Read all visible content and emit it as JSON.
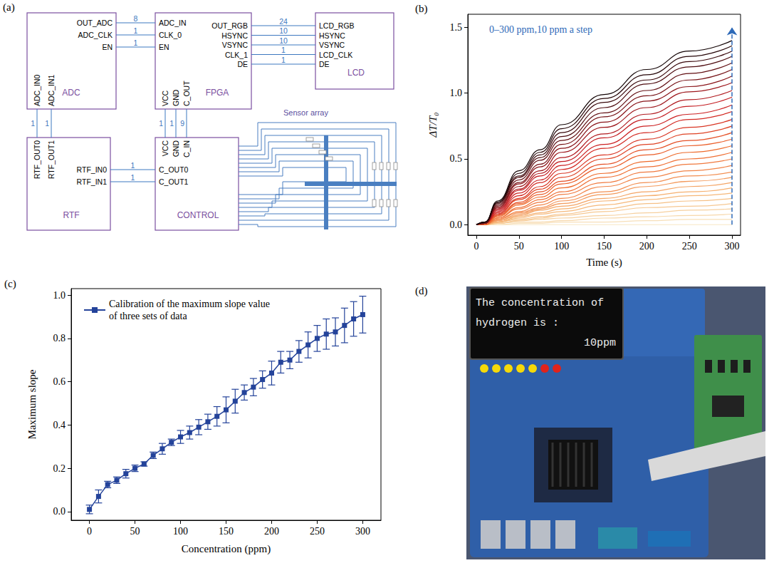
{
  "diagram": {
    "panel": "(a)",
    "blocks": [
      {
        "title": "ADC",
        "right": [
          "OUT_ADC",
          "ADC_CLK",
          "EN"
        ],
        "bottom": [
          "ADC_IN0",
          "ADC_IN1"
        ]
      },
      {
        "title": "FPGA",
        "left": [
          "ADC_IN",
          "CLK_0",
          "EN"
        ],
        "right": [
          "OUT_RGB",
          "HSYNC",
          "VSYNC",
          "CLK_1",
          "DE"
        ],
        "bottom": [
          "VCC",
          "GND",
          "C_OUT"
        ]
      },
      {
        "title": "LCD",
        "left": [
          "LCD_RGB",
          "HSYNC",
          "VSYNC",
          "LCD_CLK",
          "DE"
        ]
      },
      {
        "title": "RTF",
        "top": [
          "RTF_OUT0",
          "RTF_OUT1"
        ],
        "right": [
          "RTF_IN0",
          "RTF_IN1"
        ]
      },
      {
        "title": "CONTROL",
        "top": [
          "VCC",
          "GND",
          "C_IN"
        ],
        "left": [
          "C_OUT0",
          "C_OUT1"
        ]
      }
    ],
    "buses": [
      [
        8,
        1,
        1
      ],
      [
        24,
        10,
        10,
        1,
        1
      ],
      [
        1,
        1
      ],
      [
        1,
        1,
        9
      ],
      [
        1,
        1
      ]
    ],
    "sensor_array": "Sensor array"
  },
  "chart_data": [
    {
      "type": "line",
      "panel": "(b)",
      "annotation": "0–300 ppm,10 ppm a step",
      "x_label": "Time (s)",
      "y_label": "ΔT/T₀",
      "x": [
        0,
        10,
        25,
        50,
        75,
        100,
        150,
        200,
        250,
        300
      ],
      "series": [
        {
          "color": "#f8e6c4",
          "values": [
            0,
            0,
            0,
            0,
            0,
            0,
            0,
            0,
            0,
            0
          ]
        },
        {
          "color": "#f7dfb8",
          "values": [
            0,
            0,
            0,
            0.01,
            0.01,
            0.02,
            0.02,
            0.03,
            0.04,
            0.04
          ]
        },
        {
          "color": "#f7d8ab",
          "values": [
            0,
            0,
            0.01,
            0.02,
            0.02,
            0.03,
            0.05,
            0.06,
            0.07,
            0.08
          ]
        },
        {
          "color": "#f6d09f",
          "values": [
            0,
            0,
            0.01,
            0.03,
            0.04,
            0.05,
            0.07,
            0.09,
            0.11,
            0.12
          ]
        },
        {
          "color": "#f6c892",
          "values": [
            0,
            0,
            0.01,
            0.03,
            0.05,
            0.07,
            0.1,
            0.13,
            0.14,
            0.16
          ]
        },
        {
          "color": "#f5c086",
          "values": [
            0,
            0,
            0.02,
            0.04,
            0.06,
            0.08,
            0.12,
            0.16,
            0.18,
            0.2
          ]
        },
        {
          "color": "#f5b87a",
          "values": [
            0,
            0,
            0.02,
            0.05,
            0.08,
            0.1,
            0.15,
            0.19,
            0.22,
            0.24
          ]
        },
        {
          "color": "#f5b070",
          "values": [
            0,
            0,
            0.02,
            0.06,
            0.09,
            0.12,
            0.18,
            0.22,
            0.25,
            0.28
          ]
        },
        {
          "color": "#f4a566",
          "values": [
            0,
            0,
            0.03,
            0.07,
            0.11,
            0.14,
            0.2,
            0.25,
            0.29,
            0.32
          ]
        },
        {
          "color": "#f39a5c",
          "values": [
            0,
            0,
            0.03,
            0.08,
            0.12,
            0.16,
            0.23,
            0.29,
            0.33,
            0.36
          ]
        },
        {
          "color": "#f28f52",
          "values": [
            0,
            0,
            0.04,
            0.09,
            0.13,
            0.18,
            0.25,
            0.32,
            0.37,
            0.4
          ]
        },
        {
          "color": "#f18448",
          "values": [
            0,
            0,
            0.04,
            0.1,
            0.15,
            0.2,
            0.29,
            0.36,
            0.41,
            0.45
          ]
        },
        {
          "color": "#f0793e",
          "values": [
            0,
            0,
            0.05,
            0.12,
            0.17,
            0.23,
            0.32,
            0.4,
            0.46,
            0.5
          ]
        },
        {
          "color": "#ef6f34",
          "values": [
            0,
            0,
            0.05,
            0.13,
            0.19,
            0.25,
            0.36,
            0.44,
            0.5,
            0.55
          ]
        },
        {
          "color": "#ee6a2a",
          "values": [
            0,
            0,
            0.06,
            0.15,
            0.21,
            0.28,
            0.39,
            0.48,
            0.55,
            0.6
          ]
        },
        {
          "color": "#ea5d28",
          "values": [
            0,
            0,
            0.07,
            0.16,
            0.23,
            0.31,
            0.43,
            0.53,
            0.6,
            0.65
          ]
        },
        {
          "color": "#e55026",
          "values": [
            0,
            0.01,
            0.07,
            0.17,
            0.25,
            0.33,
            0.46,
            0.57,
            0.64,
            0.7
          ]
        },
        {
          "color": "#df4325",
          "values": [
            0,
            0.01,
            0.08,
            0.19,
            0.27,
            0.36,
            0.5,
            0.61,
            0.69,
            0.75
          ]
        },
        {
          "color": "#d93624",
          "values": [
            0,
            0.01,
            0.08,
            0.2,
            0.29,
            0.39,
            0.53,
            0.65,
            0.74,
            0.8
          ]
        },
        {
          "color": "#d32a23",
          "values": [
            0,
            0.01,
            0.09,
            0.22,
            0.32,
            0.42,
            0.58,
            0.7,
            0.8,
            0.86
          ]
        },
        {
          "color": "#cc2223",
          "values": [
            0,
            0.01,
            0.1,
            0.24,
            0.34,
            0.45,
            0.61,
            0.75,
            0.84,
            0.91
          ]
        },
        {
          "color": "#c41e23",
          "values": [
            0,
            0.01,
            0.11,
            0.26,
            0.37,
            0.48,
            0.66,
            0.8,
            0.9,
            0.97
          ]
        },
        {
          "color": "#b11b20",
          "values": [
            0,
            0.01,
            0.12,
            0.27,
            0.39,
            0.51,
            0.69,
            0.84,
            0.95,
            1.02
          ]
        },
        {
          "color": "#9e181d",
          "values": [
            0,
            0.01,
            0.13,
            0.29,
            0.41,
            0.55,
            0.74,
            0.89,
            1.01,
            1.08
          ]
        },
        {
          "color": "#8a151a",
          "values": [
            0,
            0.01,
            0.13,
            0.31,
            0.44,
            0.58,
            0.78,
            0.94,
            1.05,
            1.13
          ]
        },
        {
          "color": "#761216",
          "values": [
            0,
            0.01,
            0.14,
            0.32,
            0.46,
            0.61,
            0.82,
            0.98,
            1.1,
            1.18
          ]
        },
        {
          "color": "#620f13",
          "values": [
            0,
            0.01,
            0.15,
            0.34,
            0.49,
            0.64,
            0.85,
            1.02,
            1.15,
            1.23
          ]
        },
        {
          "color": "#4e0c10",
          "values": [
            0,
            0.02,
            0.16,
            0.36,
            0.51,
            0.67,
            0.89,
            1.07,
            1.2,
            1.28
          ]
        },
        {
          "color": "#3a090c",
          "values": [
            0,
            0.02,
            0.17,
            0.37,
            0.53,
            0.7,
            0.93,
            1.1,
            1.24,
            1.32
          ]
        },
        {
          "color": "#260608",
          "values": [
            0,
            0.02,
            0.17,
            0.39,
            0.55,
            0.73,
            0.96,
            1.14,
            1.28,
            1.36
          ]
        },
        {
          "color": "#120304",
          "values": [
            0,
            0.02,
            0.18,
            0.41,
            0.57,
            0.76,
            0.99,
            1.18,
            1.32,
            1.4
          ]
        }
      ],
      "xlim": [
        -10,
        310
      ],
      "xticks": [
        0,
        50,
        100,
        150,
        200,
        250,
        300
      ],
      "ylim": [
        -0.08,
        1.6
      ],
      "yticks": [
        {
          "value": 0,
          "label": "0.0"
        },
        0.5,
        {
          "value": 1,
          "label": "1.0"
        },
        1.5
      ],
      "grid": false
    },
    {
      "type": "line",
      "panel": "(c)",
      "x_label": "Concentration (ppm)",
      "y_label": "Maximum slope",
      "x": [
        0,
        10,
        20,
        30,
        40,
        50,
        60,
        70,
        80,
        90,
        100,
        110,
        120,
        130,
        140,
        150,
        160,
        170,
        180,
        190,
        200,
        210,
        220,
        230,
        240,
        250,
        260,
        270,
        280,
        290,
        300
      ],
      "series": [
        {
          "name": "Calibration of the maximum slope value of three sets of data",
          "color": "#24439a",
          "marker": "square",
          "values": [
            0.01,
            0.07,
            0.125,
            0.145,
            0.175,
            0.2,
            0.22,
            0.26,
            0.29,
            0.32,
            0.345,
            0.365,
            0.39,
            0.415,
            0.44,
            0.47,
            0.51,
            0.55,
            0.575,
            0.61,
            0.64,
            0.69,
            0.7,
            0.74,
            0.77,
            0.8,
            0.82,
            0.83,
            0.86,
            0.89,
            0.91
          ],
          "errors": [
            0.02,
            0.03,
            0.015,
            0.015,
            0.02,
            0.015,
            0.01,
            0.015,
            0.025,
            0.015,
            0.03,
            0.03,
            0.035,
            0.035,
            0.045,
            0.06,
            0.055,
            0.035,
            0.04,
            0.04,
            0.055,
            0.05,
            0.04,
            0.05,
            0.06,
            0.06,
            0.07,
            0.065,
            0.08,
            0.08,
            0.085
          ]
        }
      ],
      "legend": "upper left",
      "xlim": [
        -20,
        320
      ],
      "xticks": [
        0,
        50,
        100,
        150,
        200,
        250,
        300
      ],
      "ylim": [
        -0.04,
        1.03
      ],
      "yticks": [
        {
          "value": 0,
          "label": "0.0"
        },
        0.2,
        0.4,
        0.6,
        0.8,
        {
          "value": 1,
          "label": "1.0"
        }
      ],
      "grid": false
    }
  ],
  "photo": {
    "panel": "(d)",
    "screen": [
      "The concentration of",
      "hydrogen is :",
      "10ppm"
    ]
  }
}
